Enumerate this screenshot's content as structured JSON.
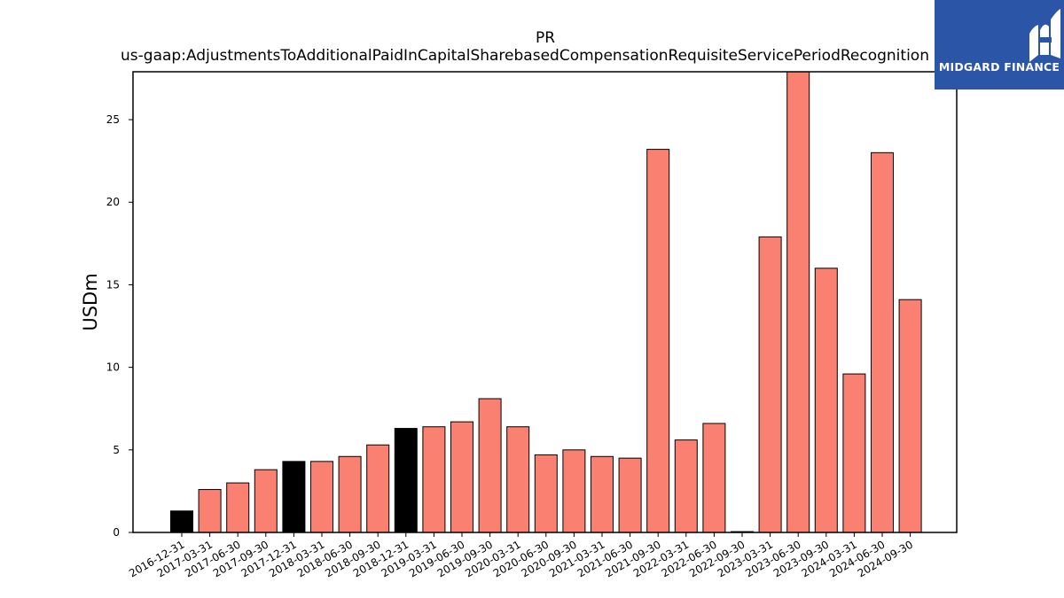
{
  "chart_data": {
    "type": "bar",
    "title": "PR",
    "subtitle": "us-gaap:AdjustmentsToAdditionalPaidInCapitalSharebasedCompensationRequisiteServicePeriodRecognition",
    "xlabel": "",
    "ylabel": "USDm",
    "ylim": [
      0,
      27.9
    ],
    "yticks": [
      0,
      5,
      10,
      15,
      20,
      25
    ],
    "grid": false,
    "categories": [
      "2016-12-31",
      "2017-03-31",
      "2017-06-30",
      "2017-09-30",
      "2017-12-31",
      "2018-03-31",
      "2018-06-30",
      "2018-09-30",
      "2018-12-31",
      "2019-03-31",
      "2019-06-30",
      "2019-09-30",
      "2020-03-31",
      "2020-06-30",
      "2020-09-30",
      "2021-03-31",
      "2021-06-30",
      "2021-09-30",
      "2022-03-31",
      "2022-06-30",
      "2022-09-30",
      "2023-03-31",
      "2023-06-30",
      "2023-09-30",
      "2024-03-31",
      "2024-06-30",
      "2024-09-30"
    ],
    "values": [
      1.3,
      2.6,
      3.0,
      3.8,
      4.3,
      4.3,
      4.6,
      5.3,
      6.3,
      6.4,
      6.7,
      8.1,
      6.4,
      4.7,
      5.0,
      4.6,
      4.5,
      23.2,
      5.6,
      6.6,
      0.05,
      17.9,
      27.9,
      16.0,
      9.6,
      23.0,
      14.1
    ],
    "bar_colors": [
      "#000000",
      "#fa8072",
      "#fa8072",
      "#fa8072",
      "#000000",
      "#fa8072",
      "#fa8072",
      "#fa8072",
      "#000000",
      "#fa8072",
      "#fa8072",
      "#fa8072",
      "#fa8072",
      "#fa8072",
      "#fa8072",
      "#fa8072",
      "#fa8072",
      "#fa8072",
      "#fa8072",
      "#fa8072",
      "#fa8072",
      "#fa8072",
      "#fa8072",
      "#fa8072",
      "#fa8072",
      "#fa8072",
      "#fa8072"
    ]
  },
  "logo": {
    "text": "MIDGARD FINANCE",
    "background": "#2b55a6"
  }
}
